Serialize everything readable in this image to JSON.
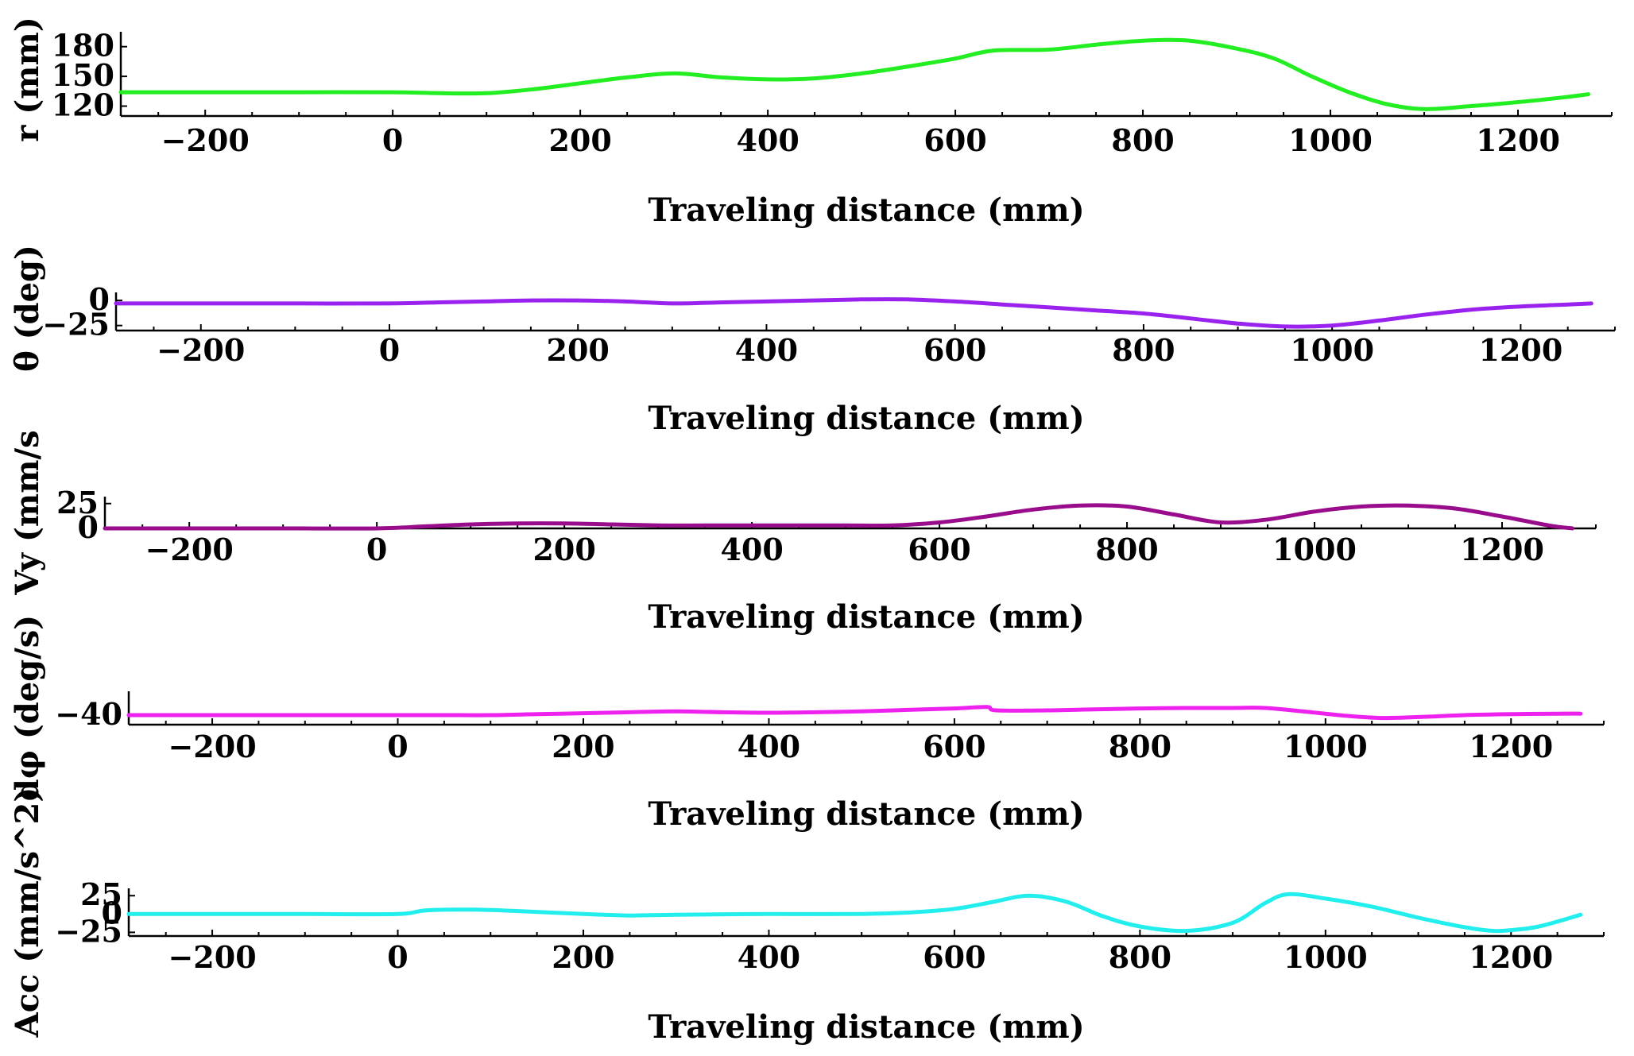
{
  "chart_data": [
    {
      "type": "line",
      "xlabel": "Traveling distance (mm)",
      "ylabel": "r (mm)",
      "xlim": [
        -290,
        1300
      ],
      "ylim": [
        110,
        195
      ],
      "xticks": [
        -200,
        0,
        200,
        400,
        600,
        800,
        1000,
        1200
      ],
      "yticks": [
        120,
        150,
        180
      ],
      "grid": false,
      "series": [
        {
          "color": "#22ee22",
          "x": [
            -290,
            -200,
            -100,
            0,
            50,
            100,
            150,
            200,
            250,
            300,
            350,
            400,
            450,
            500,
            550,
            600,
            640,
            700,
            750,
            800,
            850,
            900,
            940,
            980,
            1020,
            1060,
            1100,
            1150,
            1200,
            1250,
            1275
          ],
          "y": [
            134,
            134,
            134,
            134,
            133,
            133,
            137,
            143,
            149,
            153,
            149,
            147,
            148,
            153,
            160,
            168,
            176,
            177,
            182,
            186,
            186,
            178,
            168,
            150,
            134,
            122,
            117,
            120,
            124,
            129,
            132
          ]
        }
      ]
    },
    {
      "type": "line",
      "xlabel": "Traveling distance (mm)",
      "ylabel": "θ (deg)",
      "xlim": [
        -290,
        1300
      ],
      "ylim": [
        -30,
        8
      ],
      "xticks": [
        -200,
        0,
        200,
        400,
        600,
        800,
        1000,
        1200
      ],
      "yticks": [
        -25,
        0
      ],
      "grid": false,
      "series": [
        {
          "color": "#9a22ee",
          "x": [
            -290,
            -200,
            -100,
            0,
            50,
            100,
            150,
            200,
            250,
            300,
            350,
            400,
            450,
            500,
            550,
            600,
            650,
            700,
            750,
            800,
            850,
            900,
            950,
            1000,
            1050,
            1100,
            1150,
            1200,
            1250,
            1275
          ],
          "y": [
            -3,
            -3,
            -3,
            -3,
            -2,
            -1,
            0,
            0,
            -1,
            -3,
            -2,
            -1,
            0,
            1,
            1,
            -1,
            -4,
            -7,
            -10,
            -13,
            -18,
            -23,
            -26,
            -25,
            -20,
            -14,
            -9,
            -6,
            -4,
            -3
          ]
        }
      ]
    },
    {
      "type": "line",
      "xlabel": "Traveling distance (mm)",
      "ylabel": "Vy (mm/s",
      "xlim": [
        -290,
        1300
      ],
      "ylim": [
        0,
        32
      ],
      "xticks": [
        -200,
        0,
        200,
        400,
        600,
        800,
        1000,
        1200
      ],
      "yticks": [
        0,
        25
      ],
      "grid": false,
      "series": [
        {
          "color": "#990d8c",
          "x": [
            -290,
            -200,
            -100,
            0,
            50,
            100,
            150,
            200,
            250,
            300,
            350,
            400,
            450,
            500,
            550,
            600,
            650,
            700,
            750,
            800,
            850,
            900,
            950,
            1000,
            1050,
            1100,
            1150,
            1200,
            1250,
            1275
          ],
          "y": [
            0,
            0,
            0,
            0,
            2,
            4,
            5,
            5,
            4,
            3,
            3,
            3,
            3,
            3,
            3,
            6,
            12,
            19,
            23,
            22,
            14,
            6,
            9,
            17,
            22,
            23,
            20,
            12,
            3,
            0
          ]
        }
      ]
    },
    {
      "type": "line",
      "xlabel": "Traveling distance (mm)",
      "ylabel": "dφ (deg/s)",
      "xlim": [
        -290,
        1300
      ],
      "ylim": [
        -60,
        10
      ],
      "xticks": [
        -200,
        0,
        200,
        400,
        600,
        800,
        1000,
        1200
      ],
      "yticks": [
        -40
      ],
      "grid": false,
      "series": [
        {
          "color": "#ee22ee",
          "x": [
            -290,
            -200,
            -100,
            0,
            50,
            100,
            150,
            200,
            250,
            300,
            350,
            400,
            450,
            500,
            550,
            600,
            635,
            645,
            700,
            750,
            800,
            850,
            900,
            935,
            980,
            1020,
            1060,
            1100,
            1150,
            1200,
            1250,
            1275
          ],
          "y": [
            -40,
            -40,
            -40,
            -40,
            -40,
            -40,
            -38,
            -36,
            -34,
            -32,
            -34,
            -35,
            -34,
            -32,
            -29,
            -26,
            -23,
            -30,
            -30,
            -28,
            -26,
            -25,
            -25,
            -25,
            -33,
            -41,
            -46,
            -44,
            -40,
            -38,
            -37,
            -37
          ]
        }
      ]
    },
    {
      "type": "line",
      "xlabel": "Traveling distance (mm)",
      "ylabel": "Acc (mm/s^2)",
      "xlim": [
        -290,
        1300
      ],
      "ylim": [
        -30,
        35
      ],
      "xticks": [
        -200,
        0,
        200,
        400,
        600,
        800,
        1000,
        1200
      ],
      "yticks": [
        -25,
        0,
        25
      ],
      "grid": false,
      "series": [
        {
          "color": "#22eeee",
          "x": [
            -290,
            -200,
            -100,
            0,
            30,
            80,
            130,
            200,
            250,
            300,
            400,
            500,
            550,
            600,
            640,
            680,
            720,
            760,
            800,
            850,
            900,
            935,
            960,
            1000,
            1050,
            1100,
            1150,
            1180,
            1200,
            1230,
            1275
          ],
          "y": [
            0,
            0,
            0,
            0,
            5,
            6,
            4,
            0,
            -2,
            -1,
            0,
            0,
            2,
            7,
            16,
            25,
            17,
            -3,
            -17,
            -23,
            -12,
            15,
            27,
            21,
            10,
            -5,
            -18,
            -23,
            -22,
            -17,
            -1
          ]
        }
      ]
    }
  ]
}
